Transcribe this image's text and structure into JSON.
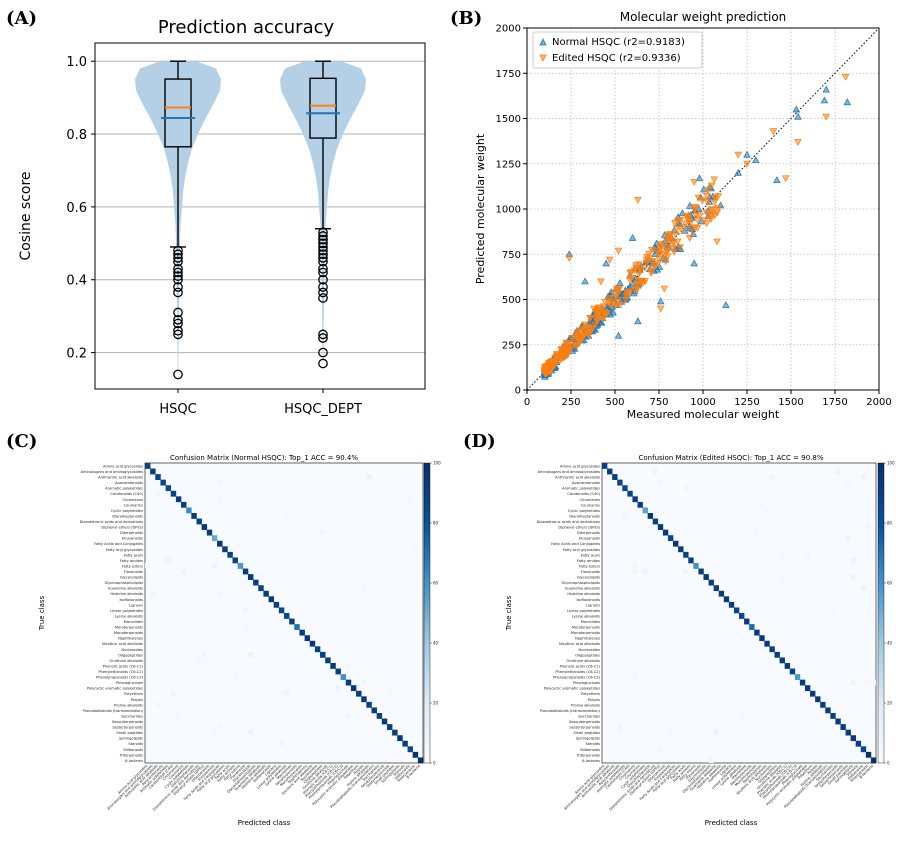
{
  "panels": {
    "a": "(A)",
    "b": "(B)",
    "c": "(C)",
    "d": "(D)"
  },
  "colors": {
    "blue": "#1f77b4",
    "orange": "#ff7f0e",
    "violin": "#b4d0e6"
  },
  "chart_data": [
    {
      "id": "A",
      "type": "violin-box",
      "title": "Prediction accuracy",
      "xlabel": "",
      "ylabel": "Cosine score",
      "ylim": [
        0.1,
        1.05
      ],
      "yticks": [
        "0.2",
        "0.4",
        "0.6",
        "0.8",
        "1.0"
      ],
      "grid": "horizontal",
      "categories": [
        "HSQC",
        "HSQC_DEPT"
      ],
      "series": [
        {
          "name": "HSQC",
          "median": 0.873,
          "mean": 0.844,
          "q1": 0.765,
          "q3": 0.951,
          "whisker_low": 0.49,
          "whisker_high": 1.0,
          "outliers": [
            0.48,
            0.47,
            0.46,
            0.45,
            0.43,
            0.42,
            0.41,
            0.4,
            0.38,
            0.365,
            0.31,
            0.29,
            0.28,
            0.26,
            0.25,
            0.14
          ]
        },
        {
          "name": "HSQC_DEPT",
          "median": 0.878,
          "mean": 0.857,
          "q1": 0.789,
          "q3": 0.953,
          "whisker_low": 0.54,
          "whisker_high": 1.0,
          "outliers": [
            0.53,
            0.52,
            0.51,
            0.5,
            0.49,
            0.48,
            0.47,
            0.46,
            0.45,
            0.43,
            0.42,
            0.4,
            0.38,
            0.365,
            0.35,
            0.25,
            0.24,
            0.2,
            0.17
          ]
        }
      ]
    },
    {
      "id": "B",
      "type": "scatter",
      "title": "Molecular weight prediction",
      "xlabel": "Measured molecular weight",
      "ylabel": "Predicted molecular weight",
      "xlim": [
        0,
        2000
      ],
      "ylim": [
        0,
        2000
      ],
      "xticks": [
        "0",
        "250",
        "500",
        "750",
        "1000",
        "1250",
        "1500",
        "1750",
        "2000"
      ],
      "yticks": [
        "0",
        "250",
        "500",
        "750",
        "1000",
        "1250",
        "1500",
        "1750",
        "2000"
      ],
      "grid": "dotted",
      "legend_position": "top-left",
      "series": [
        {
          "name": "Normal HSQC (r2=0.9183)",
          "marker": "triangle-up",
          "points": [
            [
              1820,
              1590
            ],
            [
              1700,
              1660
            ],
            [
              1690,
              1600
            ],
            [
              1540,
              1510
            ],
            [
              1530,
              1550
            ],
            [
              1420,
              1160
            ],
            [
              1300,
              1270
            ],
            [
              1250,
              1300
            ],
            [
              1200,
              1200
            ],
            [
              1130,
              470
            ],
            [
              1100,
              1020
            ],
            [
              980,
              1170
            ],
            [
              950,
              700
            ],
            [
              860,
              920
            ],
            [
              800,
              800
            ],
            [
              760,
              490
            ],
            [
              720,
              700
            ],
            [
              630,
              380
            ],
            [
              600,
              840
            ],
            [
              520,
              300
            ],
            [
              440,
              420
            ],
            [
              400,
              360
            ],
            [
              350,
              300
            ],
            [
              240,
              750
            ],
            [
              330,
              600
            ],
            [
              450,
              700
            ]
          ]
        },
        {
          "name": "Edited HSQC (r2=0.9336)",
          "marker": "triangle-down",
          "points": [
            [
              1810,
              1730
            ],
            [
              1700,
              1510
            ],
            [
              1540,
              1370
            ],
            [
              1470,
              1170
            ],
            [
              1400,
              1430
            ],
            [
              1250,
              1250
            ],
            [
              1200,
              1300
            ],
            [
              1080,
              820
            ],
            [
              1050,
              1000
            ],
            [
              950,
              1150
            ],
            [
              900,
              920
            ],
            [
              830,
              810
            ],
            [
              780,
              560
            ],
            [
              760,
              450
            ],
            [
              680,
              720
            ],
            [
              620,
              690
            ],
            [
              560,
              500
            ],
            [
              520,
              770
            ],
            [
              470,
              720
            ],
            [
              420,
              600
            ],
            [
              380,
              450
            ],
            [
              300,
              290
            ],
            [
              240,
              730
            ],
            [
              630,
              1050
            ]
          ]
        }
      ]
    },
    {
      "id": "C",
      "type": "heatmap",
      "title": "Confusion Matrix (Normal HSQC): Top_1 ACC = 90.4%",
      "xlabel": "Predicted class",
      "ylabel": "True class",
      "colorbar_ticks": [
        "0",
        "20",
        "40",
        "60",
        "80",
        "100"
      ],
      "diagonal": [
        88,
        92,
        90,
        86,
        84,
        90,
        93,
        91,
        62,
        94,
        90,
        95,
        93,
        52,
        96,
        92,
        89,
        90,
        58,
        92,
        94,
        91,
        89,
        93,
        95,
        90,
        87,
        86,
        92,
        70,
        93,
        95,
        94,
        90,
        92,
        91,
        94,
        89,
        60,
        92,
        95,
        93,
        94,
        90,
        92,
        88,
        94,
        92,
        91,
        95,
        90,
        85,
        100,
        100
      ]
    },
    {
      "id": "D",
      "type": "heatmap",
      "title": "Confusion Matrix (Edited HSQC): Top_1 ACC = 90.8%",
      "xlabel": "Predicted class",
      "ylabel": "True class",
      "colorbar_ticks": [
        "0",
        "20",
        "40",
        "60",
        "80",
        "100"
      ],
      "diagonal": [
        90,
        92,
        91,
        88,
        86,
        90,
        93,
        92,
        55,
        95,
        91,
        95,
        94,
        86,
        96,
        93,
        90,
        92,
        60,
        93,
        94,
        92,
        90,
        93,
        95,
        91,
        88,
        87,
        93,
        72,
        94,
        95,
        94,
        91,
        92,
        92,
        95,
        90,
        58,
        93,
        95,
        93,
        94,
        91,
        92,
        89,
        94,
        93,
        92,
        95,
        91,
        86,
        100,
        100
      ]
    }
  ],
  "classes": [
    "Amino acid glycosides",
    "Aminosugars and aminoglycosides",
    "Anthranilic acid alkaloids",
    "Apocarotenoids",
    "Aromatic polyketides",
    "Carotenoids (C40)",
    "Chromanes",
    "Coumarins",
    "Cyclic polyketides",
    "Diarylheptanoids",
    "Diazotetronic acids and derivatives",
    "Diphenyl ethers (DPEs)",
    "Diterpenoids",
    "Eicosanoids",
    "Fatty Acids and Conjugates",
    "Fatty acyl glycosides",
    "Fatty acyls",
    "Fatty amides",
    "Fatty esters",
    "Flavonoids",
    "Glycerolipids",
    "Glycerophospholipids",
    "Guanidine alkaloids",
    "Histidine alkaloids",
    "Isoflavonoids",
    "Lignans",
    "Linear polyketides",
    "Lysine alkaloids",
    "Macrolides",
    "Meroterpenoids",
    "Monoterpenoids",
    "Naphthalenes",
    "Nicotinic acid alkaloids",
    "Nucleosides",
    "Oligopeptides",
    "Ornithine alkaloids",
    "Phenolic acids (C6-C1)",
    "Phenylethanoids (C6-C2)",
    "Phenylpropanoids (C6-C3)",
    "Phloroglucinols",
    "Polycyclic aromatic polyketides",
    "Polyethers",
    "Polyols",
    "Proline alkaloids",
    "Pseudoalkaloids (transamidation)",
    "Saccharides",
    "Sesquiterpenoids",
    "Sesterterpenoids",
    "Small peptides",
    "Sphingolipids",
    "Steroids",
    "Stilbenoids",
    "Triterpenoids",
    "β-lactams"
  ]
}
